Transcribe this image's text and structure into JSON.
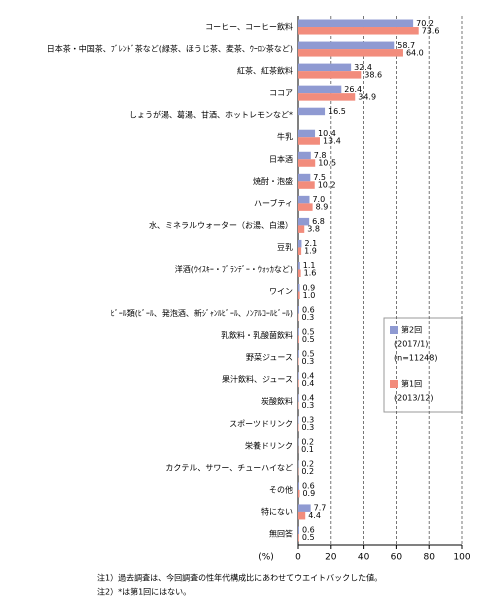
{
  "chart_data": {
    "type": "hbar",
    "categories": [
      "コーヒー、コーヒー飲料",
      "日本茶・中国茶、ﾌﾞﾚﾝﾄﾞ茶など(緑茶、ほうじ茶、麦茶、ｳｰﾛﾝ茶など)",
      "紅茶、紅茶飲料",
      "ココア",
      "しょうが湯、葛湯、甘酒、ホットレモンなど*",
      "牛乳",
      "日本酒",
      "焼酎・泡盛",
      "ハーブティ",
      "水、ミネラルウォーター（お湯、白湯）",
      "豆乳",
      "洋酒(ｳｲｽｷｰ・ﾌﾞﾗﾝﾃﾞｰ・ｳｫｯｶなど)",
      "ワイン",
      "ﾋﾞｰﾙ類(ﾋﾞｰﾙ、発泡酒、新ｼﾞｬﾝﾙﾋﾞｰﾙ、ﾉﾝｱﾙｺｰﾙﾋﾞｰﾙ)",
      "乳飲料・乳酸菌飲料",
      "野菜ジュース",
      "果汁飲料、ジュース",
      "炭酸飲料",
      "スポーツドリンク",
      "栄養ドリンク",
      "カクテル、サワー、チューハイなど",
      "その他",
      "特にない",
      "無回答"
    ],
    "series": [
      {
        "name": "第2回",
        "legend_lines": [
          "(2017/1)",
          "(n=11248)"
        ],
        "color": "#8f9ad2",
        "values": [
          70.2,
          58.7,
          32.4,
          26.4,
          16.5,
          10.4,
          7.8,
          7.5,
          7.0,
          6.8,
          2.1,
          1.1,
          0.9,
          0.6,
          0.5,
          0.5,
          0.4,
          0.4,
          0.3,
          0.2,
          0.2,
          0.6,
          7.7,
          0.6
        ],
        "value_labels": [
          "70.2",
          "58.7",
          "32.4",
          "26.4",
          "16.5",
          "10.4",
          "7.8",
          "7.5",
          "7.0",
          "6.8",
          "2.1",
          "1.1",
          "0.9",
          "0.6",
          "0.5",
          "0.5",
          "0.4",
          "0.4",
          "0.3",
          "0.2",
          "0.2",
          "0.6",
          "7.7",
          "0.6"
        ]
      },
      {
        "name": "第1回",
        "legend_lines": [
          "(2013/12)"
        ],
        "color": "#f28c7c",
        "values": [
          73.6,
          64.0,
          38.6,
          34.9,
          null,
          13.4,
          10.5,
          10.2,
          8.9,
          3.8,
          1.9,
          1.6,
          1.0,
          0.3,
          0.5,
          0.3,
          0.4,
          0.3,
          0.3,
          0.1,
          0.2,
          0.9,
          4.4,
          0.5
        ],
        "value_labels": [
          "73.6",
          "64.0",
          "38.6",
          "34.9",
          null,
          "13.4",
          "10.5",
          "10.2",
          "8.9",
          "3.8",
          "1.9",
          "1.6",
          "1.0",
          "0.3",
          "0.5",
          "0.3",
          "0.4",
          "0.3",
          "0.3",
          "0.1",
          "0.2",
          "0.9",
          "4.4",
          "0.5"
        ]
      }
    ],
    "xlim": [
      0,
      100
    ],
    "xticks": [
      0,
      20,
      40,
      60,
      80,
      100
    ],
    "x_unit": "(%)",
    "grid": true,
    "notes": [
      "注1）過去調査は、今回調査の性年代構成比にあわせてウエイトバックした値。",
      "注2）*は第1回にはない。"
    ]
  }
}
